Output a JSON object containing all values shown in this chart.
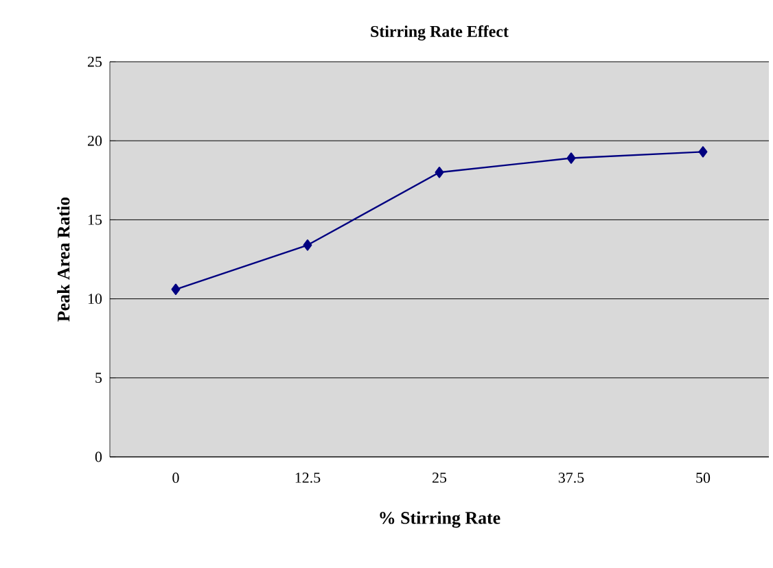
{
  "chart_data": {
    "type": "line",
    "title": "Stirring Rate Effect",
    "xlabel": "% Stirring Rate",
    "ylabel": "Peak Area Ratio",
    "categories": [
      "0",
      "12.5",
      "25",
      "37.5",
      "50"
    ],
    "series": [
      {
        "color": "#000080",
        "values": [
          10.6,
          13.4,
          18.0,
          18.9,
          19.3
        ]
      }
    ],
    "ylim": [
      0,
      25
    ],
    "yticks": [
      0,
      5,
      10,
      15,
      20,
      25
    ],
    "grid": "y",
    "marker": "diamond",
    "line_style": "solid"
  }
}
